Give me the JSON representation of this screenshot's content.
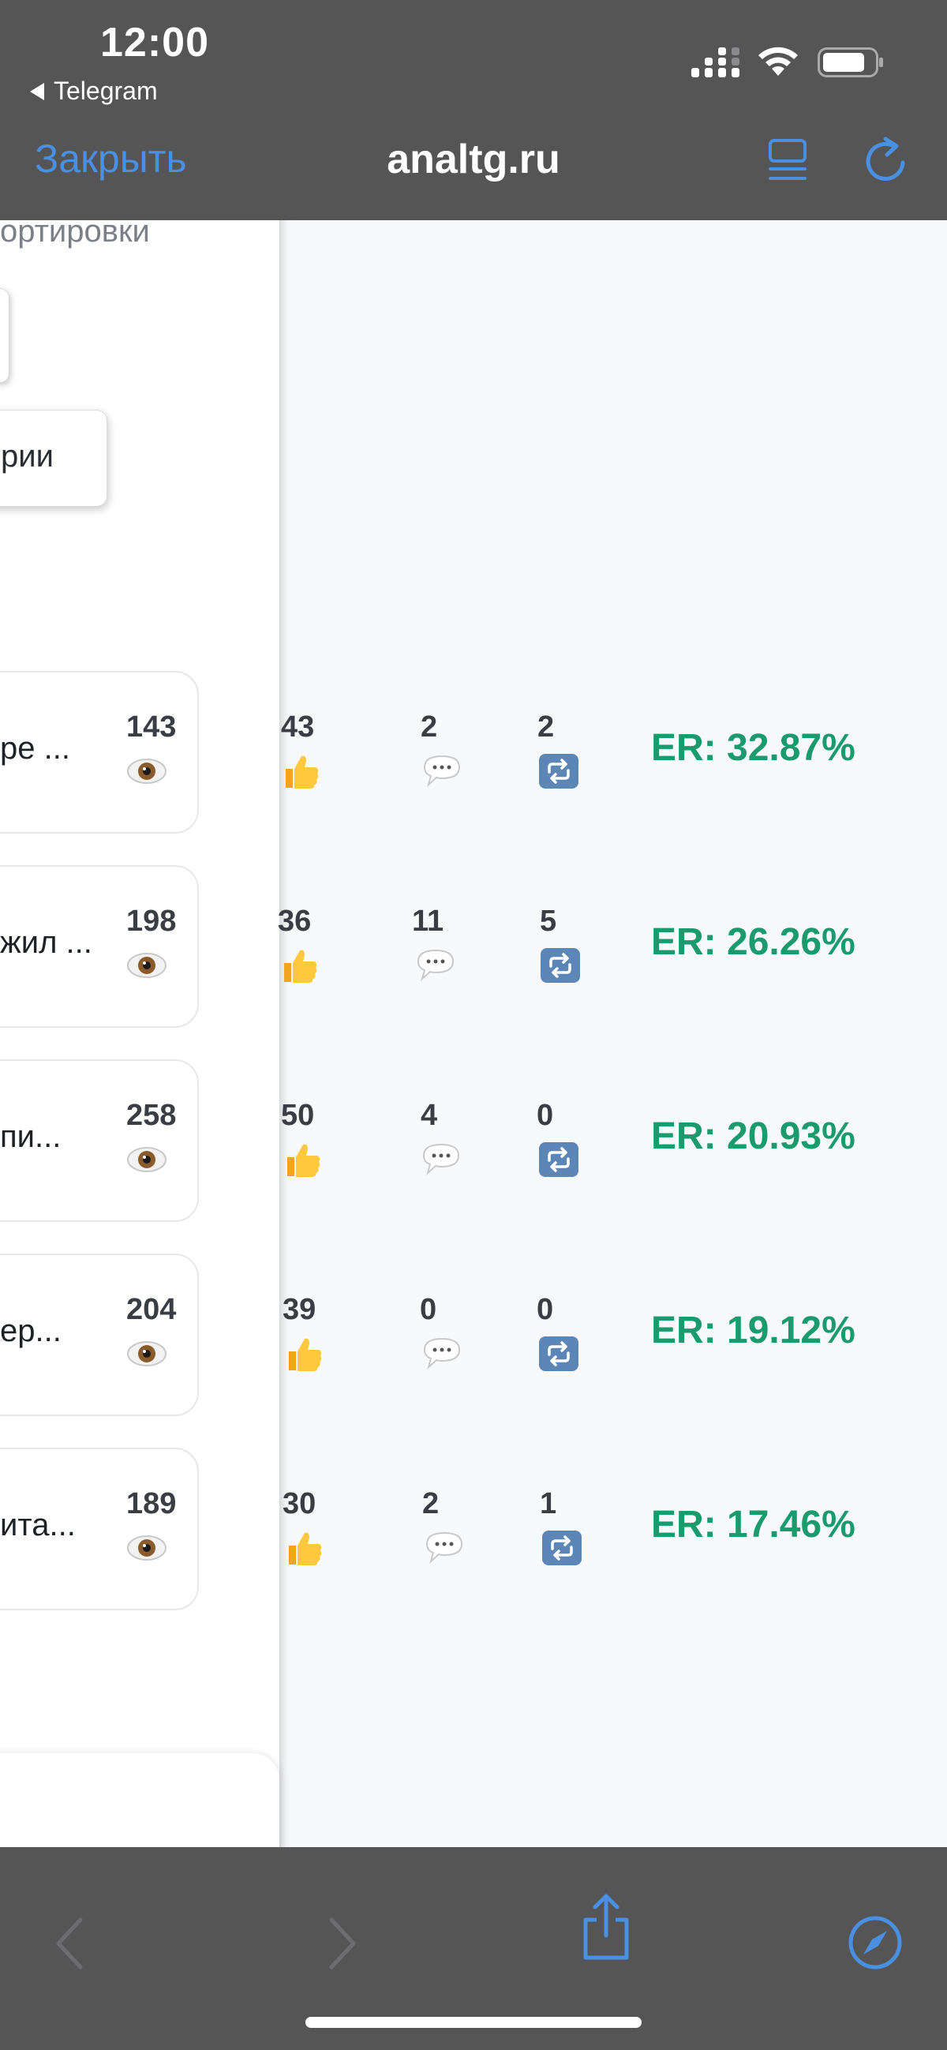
{
  "status_bar": {
    "time": "12:00",
    "back_app": "Telegram"
  },
  "browser": {
    "close_label": "Закрыть",
    "url": "analtg.ru"
  },
  "sort": {
    "label": "ортировки",
    "comments_button": "рии"
  },
  "posts": [
    {
      "title": "ре ...",
      "views": "143",
      "likes": "43",
      "comments": "2",
      "reposts": "2",
      "er": "ER: 32.87%"
    },
    {
      "title": "жил ...",
      "views": "198",
      "likes": "36",
      "comments": "11",
      "reposts": "5",
      "er": "ER: 26.26%"
    },
    {
      "title": "пи...",
      "views": "258",
      "likes": "50",
      "comments": "4",
      "reposts": "0",
      "er": "ER: 20.93%"
    },
    {
      "title": "ер...",
      "views": "204",
      "likes": "39",
      "comments": "0",
      "reposts": "0",
      "er": "ER: 19.12%"
    },
    {
      "title": "ита...",
      "views": "189",
      "likes": "30",
      "comments": "2",
      "reposts": "1",
      "er": "ER: 17.46%"
    }
  ],
  "colors": {
    "accent": "#4a90e2",
    "er_green": "#1b9a6e",
    "chrome": "#555556"
  },
  "icons": {
    "views": "eye-icon",
    "likes": "thumbs-up-icon",
    "comments": "speech-bubble-icon",
    "reposts": "repost-icon"
  }
}
